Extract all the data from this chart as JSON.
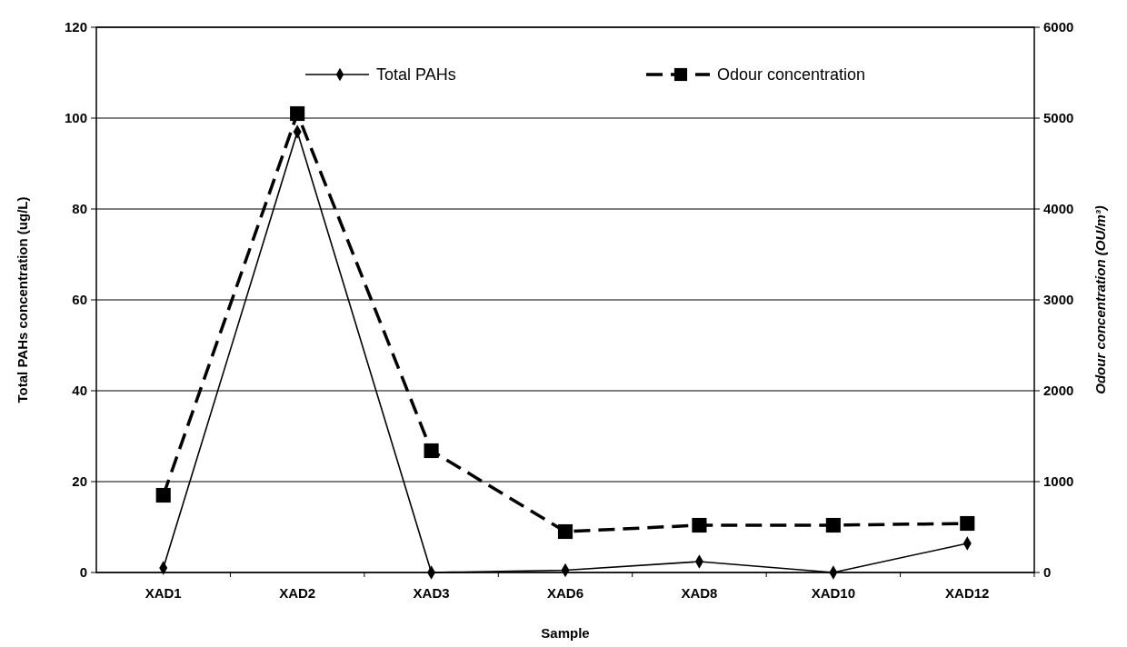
{
  "chart_data": {
    "type": "line",
    "xlabel": "Sample",
    "ylabel": "Total PAHs concentration (ug/L)",
    "y2label": "Odour concentration (OU/m³)",
    "categories": [
      "XAD1",
      "XAD2",
      "XAD3",
      "XAD6",
      "XAD8",
      "XAD10",
      "XAD12"
    ],
    "series": [
      {
        "name": "Total PAHs",
        "color": "#000000",
        "marker": "diamond",
        "line_style": "solid",
        "values": [
          1,
          97,
          0,
          0.5,
          2.4,
          0,
          6.4
        ]
      },
      {
        "name": "Odour concentration",
        "color": "#000000",
        "marker": "square",
        "line_style": "dashed",
        "axis": "y2",
        "values": [
          850,
          5050,
          1340,
          450,
          520,
          520,
          540
        ]
      }
    ],
    "ylim": [
      0,
      120
    ],
    "yticks": [
      0,
      20,
      40,
      60,
      80,
      100,
      120
    ],
    "y2lim": [
      0,
      6000
    ],
    "y2ticks": [
      0,
      1000,
      2000,
      3000,
      4000,
      5000,
      6000
    ],
    "grid": "y",
    "legend": "top"
  }
}
